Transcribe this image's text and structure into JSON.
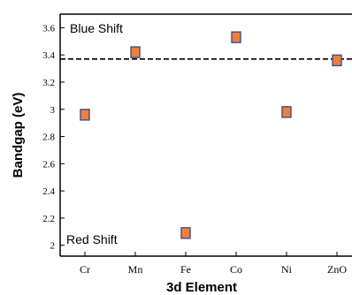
{
  "chart_data": {
    "type": "scatter",
    "title": "",
    "xlabel": "3d Element",
    "ylabel": "Bandgap (eV)",
    "categories": [
      "Cr",
      "Mn",
      "Fe",
      "Co",
      "Ni",
      "ZnO"
    ],
    "series": [
      {
        "values": [
          2.96,
          3.42,
          2.09,
          3.53,
          2.98,
          3.36
        ]
      }
    ],
    "reference_line": {
      "value": 3.37,
      "style": "dashed"
    },
    "ylim": [
      1.92,
      3.7
    ],
    "yticks": [
      "2",
      "2.2",
      "2.4",
      "2.6",
      "2.8",
      "3",
      "3.2",
      "3.4",
      "3.6"
    ],
    "annotations": [
      "Blue Shift",
      "Red Shift"
    ],
    "marker_color": "#f07f3c",
    "marker_edge_color": "#3f4e8c",
    "grid": false,
    "legend": "none"
  }
}
